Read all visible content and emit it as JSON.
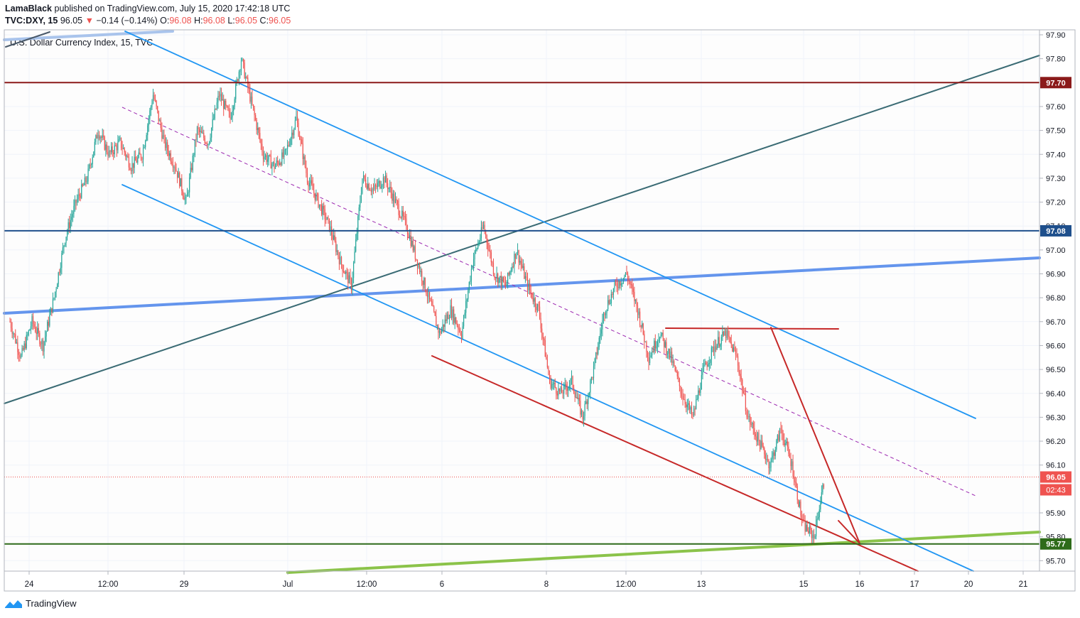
{
  "header": {
    "author": "LamaBlack",
    "published_text": "published on TradingView.com, July 15, 2020 17:42:18 UTC",
    "symbol": "TVC:DXY, 15",
    "last": "96.05",
    "change_arrow": "▼",
    "change": "−0.14 (−0.14%)",
    "o_label": "O:",
    "o_value": "96.08",
    "h_label": "H:",
    "h_value": "96.08",
    "l_label": "L:",
    "l_value": "96.05",
    "c_label": "C:",
    "c_value": "96.05"
  },
  "footer": {
    "brand": "TradingView",
    "logo_icon": "tradingview-logo-icon"
  },
  "colors": {
    "down": "#ef5350",
    "up": "#26a69a",
    "channel": "#2196f3",
    "resistance": "#8b1a1a",
    "support_blue": "#1e4f8c",
    "support_green": "#2e6b1a",
    "trend_green": "#8bc34a",
    "trend_blue": "#6495ed",
    "trend_teal": "#3a6b74",
    "pattern_red": "#c62828",
    "midline": "#9c27b0"
  },
  "chart_data": {
    "type": "candlestick",
    "title": "U.S. Dollar Currency Index, 15, TVC",
    "interval": "15",
    "ylim": [
      95.66,
      97.92
    ],
    "y_ticks": [
      "97.90",
      "97.80",
      "97.60",
      "97.50",
      "97.40",
      "97.30",
      "97.20",
      "97.10",
      "97.00",
      "96.90",
      "96.80",
      "96.70",
      "96.60",
      "96.50",
      "96.40",
      "96.30",
      "96.20",
      "96.10",
      "95.90",
      "95.80",
      "95.70"
    ],
    "x_ticks": [
      "24",
      "12:00",
      "29",
      "Jul",
      "12:00",
      "6",
      "8",
      "12:00",
      "13",
      "15",
      "16",
      "17",
      "20",
      "21"
    ],
    "price_path": [
      [
        0,
        96.7
      ],
      [
        1,
        96.55
      ],
      [
        2,
        96.7
      ],
      [
        3,
        96.6
      ],
      [
        4,
        96.8
      ],
      [
        5,
        97.05
      ],
      [
        6,
        97.2
      ],
      [
        7,
        97.3
      ],
      [
        8,
        97.5
      ],
      [
        9,
        97.4
      ],
      [
        10,
        97.45
      ],
      [
        11,
        97.35
      ],
      [
        12,
        97.4
      ],
      [
        13,
        97.65
      ],
      [
        14,
        97.45
      ],
      [
        15,
        97.35
      ],
      [
        16,
        97.2
      ],
      [
        17,
        97.5
      ],
      [
        18,
        97.45
      ],
      [
        19,
        97.65
      ],
      [
        20,
        97.55
      ],
      [
        21,
        97.8
      ],
      [
        22,
        97.6
      ],
      [
        23,
        97.4
      ],
      [
        24,
        97.35
      ],
      [
        25,
        97.4
      ],
      [
        26,
        97.55
      ],
      [
        27,
        97.3
      ],
      [
        28,
        97.2
      ],
      [
        29,
        97.1
      ],
      [
        30,
        96.95
      ],
      [
        31,
        96.85
      ],
      [
        32,
        97.3
      ],
      [
        33,
        97.25
      ],
      [
        34,
        97.3
      ],
      [
        35,
        97.2
      ],
      [
        36,
        97.1
      ],
      [
        37,
        96.95
      ],
      [
        38,
        96.8
      ],
      [
        39,
        96.65
      ],
      [
        40,
        96.75
      ],
      [
        41,
        96.65
      ],
      [
        42,
        96.95
      ],
      [
        43,
        97.1
      ],
      [
        44,
        96.9
      ],
      [
        45,
        96.85
      ],
      [
        46,
        97.0
      ],
      [
        47,
        96.85
      ],
      [
        48,
        96.75
      ],
      [
        49,
        96.45
      ],
      [
        50,
        96.4
      ],
      [
        51,
        96.45
      ],
      [
        52,
        96.3
      ],
      [
        53,
        96.5
      ],
      [
        54,
        96.75
      ],
      [
        55,
        96.85
      ],
      [
        56,
        96.9
      ],
      [
        57,
        96.75
      ],
      [
        58,
        96.55
      ],
      [
        59,
        96.65
      ],
      [
        60,
        96.55
      ],
      [
        61,
        96.4
      ],
      [
        62,
        96.3
      ],
      [
        63,
        96.5
      ],
      [
        64,
        96.6
      ],
      [
        65,
        96.65
      ],
      [
        66,
        96.55
      ],
      [
        67,
        96.3
      ],
      [
        68,
        96.2
      ],
      [
        69,
        96.1
      ],
      [
        70,
        96.25
      ],
      [
        71,
        96.1
      ],
      [
        72,
        95.85
      ],
      [
        73,
        95.8
      ],
      [
        74,
        96.05
      ]
    ],
    "horizontal_levels": [
      {
        "price": 97.7,
        "label": "97.70",
        "color": "#8b1a1a"
      },
      {
        "price": 97.08,
        "label": "97.08",
        "color": "#1e4f8c"
      },
      {
        "price": 95.77,
        "label": "95.77",
        "color": "#2e6b1a"
      },
      {
        "price": 96.05,
        "label": "96.05",
        "color": "#ef5350",
        "style": "dotted"
      }
    ],
    "countdown": "02:43"
  }
}
